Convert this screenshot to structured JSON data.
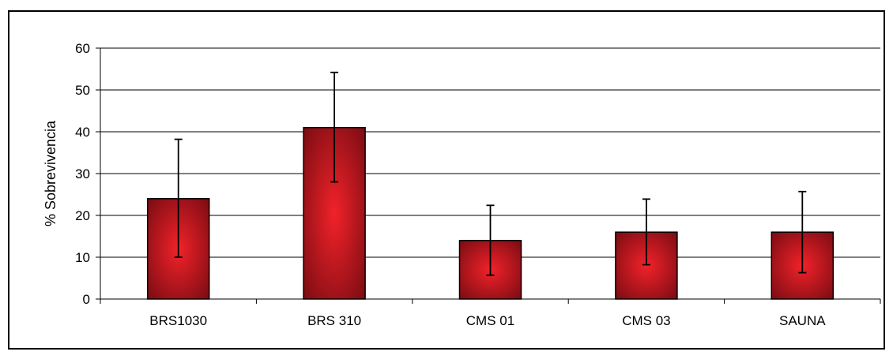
{
  "chart_data": {
    "type": "bar",
    "title": "",
    "xlabel": "",
    "ylabel": "% Sobrevivencia",
    "ylim": [
      0,
      60
    ],
    "yticks": [
      0,
      10,
      20,
      30,
      40,
      50,
      60
    ],
    "grid": true,
    "legend": "none",
    "categories": [
      "BRS1030",
      "BRS 310",
      "CMS 01",
      "CMS 03",
      "SAUNA"
    ],
    "values": [
      24,
      41,
      14,
      16,
      16
    ],
    "error_low": [
      10,
      28,
      5.7,
      8.2,
      6.3
    ],
    "error_high": [
      38.2,
      54.2,
      22.4,
      23.9,
      25.7
    ],
    "colors": {
      "bar_center": "#f2222a",
      "bar_edge": "#7a0c12",
      "bar_outline": "#000000",
      "gridline": "#000000",
      "error_bar": "#000000"
    }
  }
}
